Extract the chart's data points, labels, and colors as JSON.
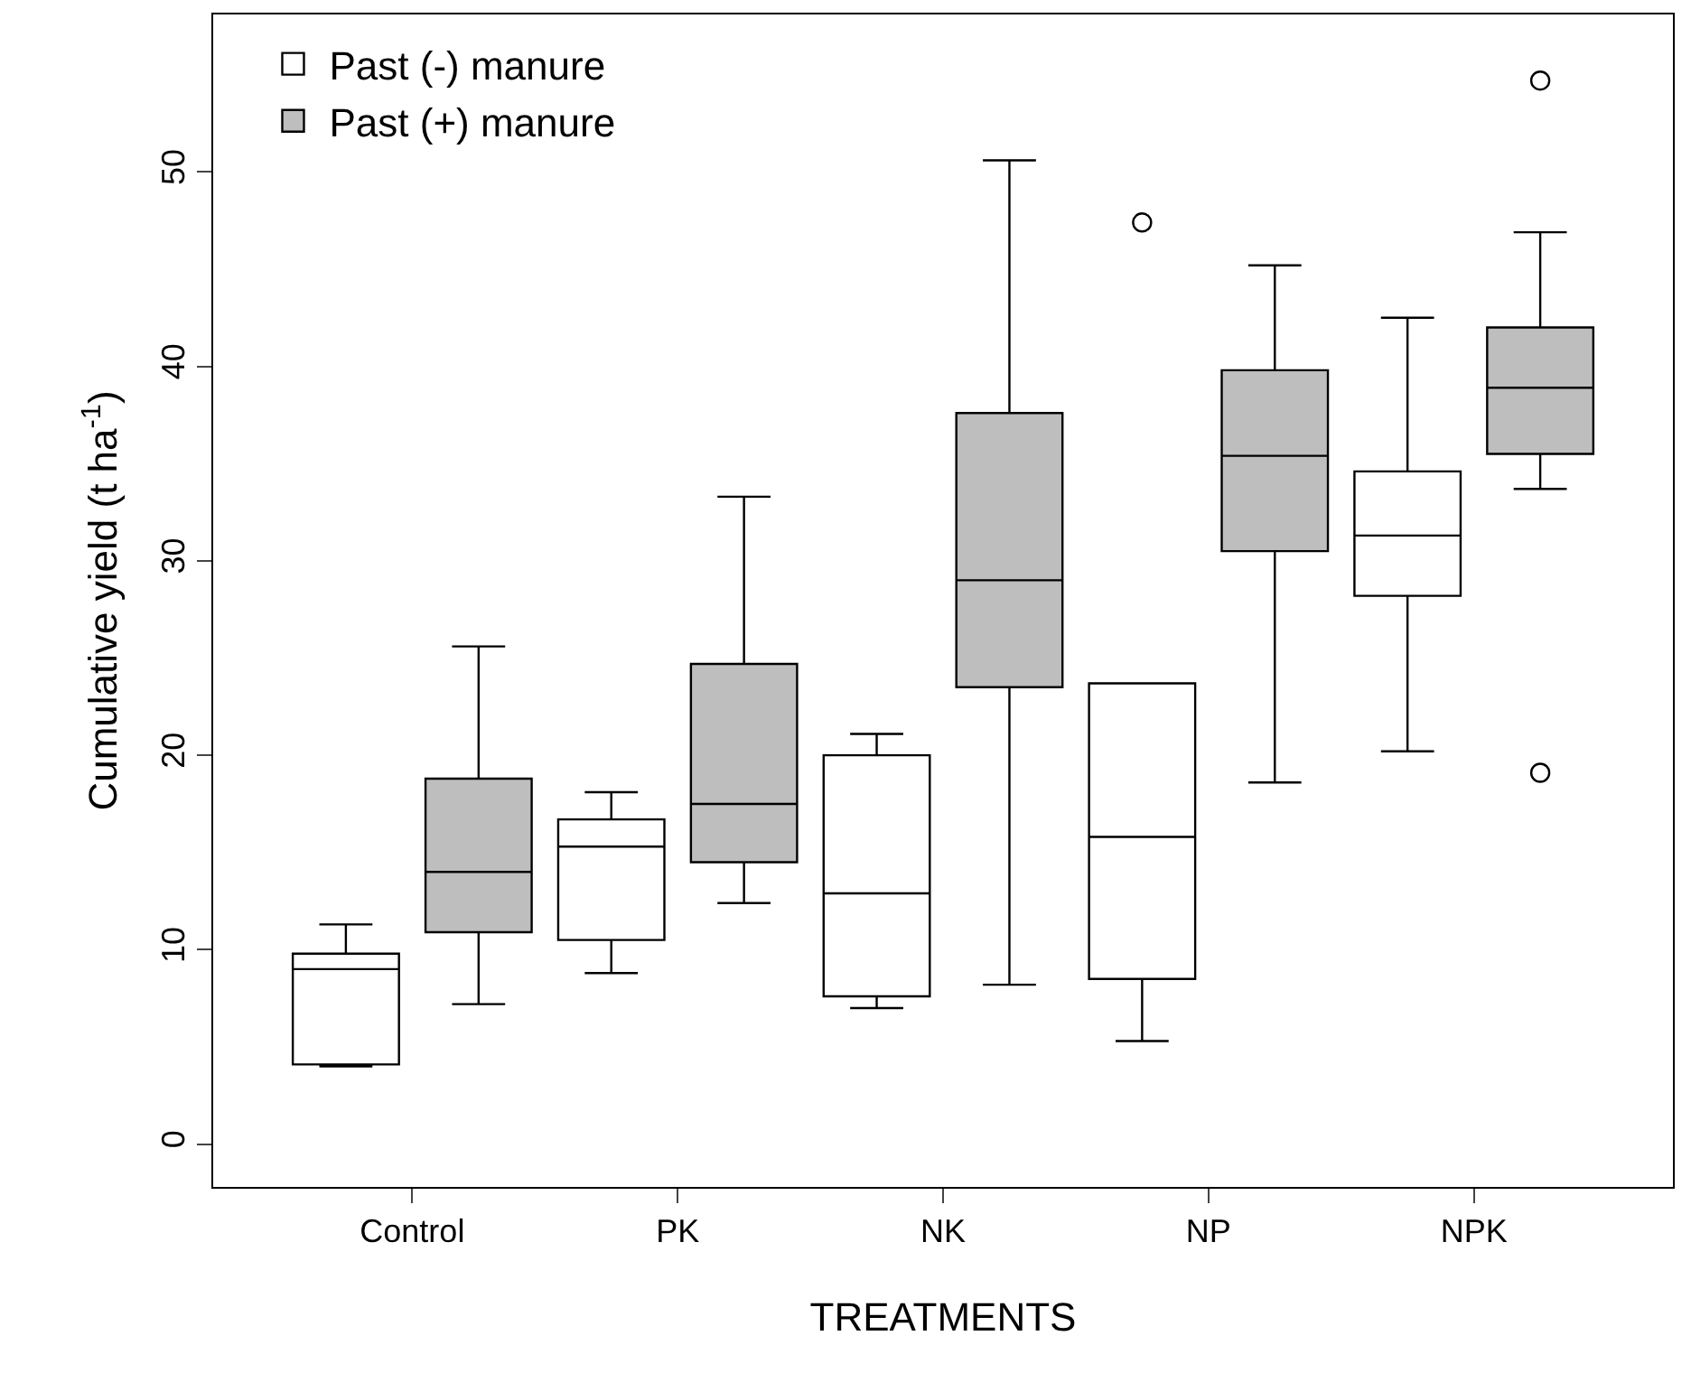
{
  "chart_data": {
    "type": "box",
    "xlabel": "TREATMENTS",
    "ylabel": "Cumulative yield (t ha$^{-1}$)",
    "categories": [
      "Control",
      "PK",
      "NK",
      "NP",
      "NPK"
    ],
    "ylim": [
      -2.2,
      58.1
    ],
    "yticks": [
      0,
      10,
      20,
      30,
      40,
      50
    ],
    "grid": false,
    "legend": "top left",
    "marker": "circle",
    "series": [
      {
        "name": "Past (-) manure",
        "color": "#ffffff",
        "boxes": [
          {
            "low": 4.0,
            "q1": 4.1,
            "median": 9.0,
            "q3": 9.8,
            "high": 11.3
          },
          {
            "low": 8.8,
            "q1": 10.5,
            "median": 15.3,
            "q3": 16.7,
            "high": 18.1
          },
          {
            "low": 7.0,
            "q1": 7.6,
            "median": 12.9,
            "q3": 20.0,
            "high": 21.1
          },
          {
            "low": 5.3,
            "q1": 8.5,
            "median": 15.8,
            "q3": 23.7,
            "high": 23.7,
            "outliers": [
              47.4
            ]
          },
          {
            "low": 20.2,
            "q1": 28.2,
            "median": 31.3,
            "q3": 34.6,
            "high": 42.5
          }
        ]
      },
      {
        "name": "Past (+) manure",
        "color": "#bebebe",
        "boxes": [
          {
            "low": 7.2,
            "q1": 10.9,
            "median": 14.0,
            "q3": 18.8,
            "high": 25.6
          },
          {
            "low": 12.4,
            "q1": 14.5,
            "median": 17.5,
            "q3": 24.7,
            "high": 33.3
          },
          {
            "low": 8.2,
            "q1": 23.5,
            "median": 29.0,
            "q3": 37.6,
            "high": 50.6
          },
          {
            "low": 18.6,
            "q1": 30.5,
            "median": 35.4,
            "q3": 39.8,
            "high": 45.2
          },
          {
            "low": 33.7,
            "q1": 35.5,
            "median": 38.9,
            "q3": 42.0,
            "high": 46.9,
            "outliers": [
              54.7,
              19.1
            ]
          }
        ]
      }
    ]
  }
}
